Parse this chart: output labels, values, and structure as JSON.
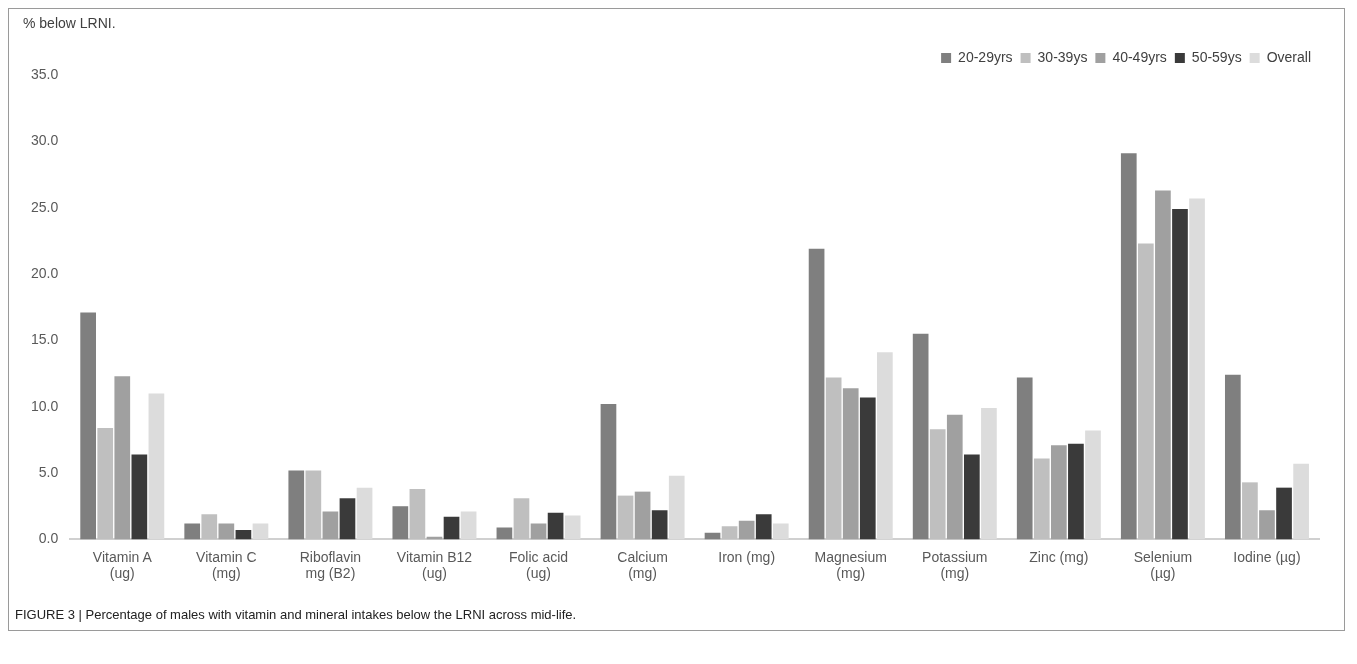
{
  "chart_data": {
    "type": "bar",
    "ylabel": "% below LRNI.",
    "categories": [
      "Vitamin A (ug)",
      "Vitamin C (mg)",
      "Riboflavin mg (B2)",
      "Vitamin B12 (ug)",
      "Folic acid (ug)",
      "Calcium (mg)",
      "Iron (mg)",
      "Magnesium (mg)",
      "Potassium (mg)",
      "Zinc (mg)",
      "Selenium (µg)",
      "Iodine (µg)"
    ],
    "series": [
      {
        "name": "20-29yrs",
        "color": "#7f7f7f",
        "values": [
          17.1,
          1.2,
          5.2,
          2.5,
          0.9,
          10.2,
          0.5,
          21.9,
          15.5,
          12.2,
          29.1,
          12.4
        ]
      },
      {
        "name": "30-39ys",
        "color": "#bfbfbf",
        "values": [
          8.4,
          1.9,
          5.2,
          3.8,
          3.1,
          3.3,
          1.0,
          12.2,
          8.3,
          6.1,
          22.3,
          4.3
        ]
      },
      {
        "name": "40-49yrs",
        "color": "#a0a0a0",
        "values": [
          12.3,
          1.2,
          2.1,
          0.2,
          1.2,
          3.6,
          1.4,
          11.4,
          9.4,
          7.1,
          26.3,
          2.2
        ]
      },
      {
        "name": "50-59ys",
        "color": "#3a3a3a",
        "values": [
          6.4,
          0.7,
          3.1,
          1.7,
          2.0,
          2.2,
          1.9,
          10.7,
          6.4,
          7.2,
          24.9,
          3.9
        ]
      },
      {
        "name": "Overall",
        "color": "#dcdcdc",
        "values": [
          11.0,
          1.2,
          3.9,
          2.1,
          1.8,
          4.8,
          1.2,
          14.1,
          9.9,
          8.2,
          25.7,
          5.7
        ]
      }
    ],
    "ylim": [
      0,
      35
    ],
    "yticks": [
      {
        "value": 0,
        "label": "0.0"
      },
      {
        "value": 5,
        "label": "5.0"
      },
      {
        "value": 10,
        "label": "10.0"
      },
      {
        "value": 15,
        "label": "15.0"
      },
      {
        "value": 20,
        "label": "20.0"
      },
      {
        "value": 25,
        "label": "25.0"
      },
      {
        "value": 30,
        "label": "30.0"
      },
      {
        "value": 35,
        "label": "35.0"
      }
    ],
    "grid": false,
    "legend": "top right",
    "annotations": [
      "FIGURE 3 | Percentage of males with vitamin and mineral intakes below the LRNI across mid-life."
    ]
  }
}
